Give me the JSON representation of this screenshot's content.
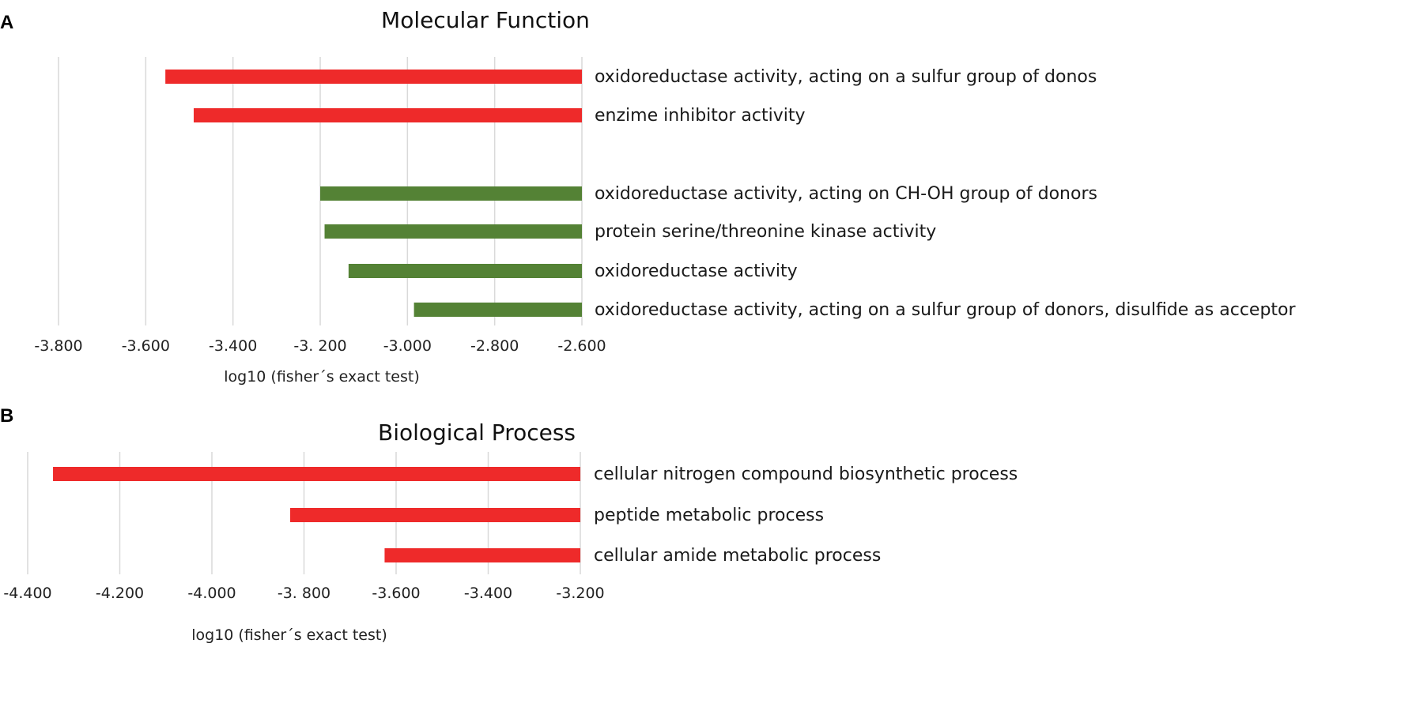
{
  "chart_data": [
    {
      "panel_label": "A",
      "type": "bar",
      "orientation": "horizontal",
      "title": "Molecular Function",
      "xlabel": "log10 (fisher´s exact test)",
      "xlim": [
        -3.8,
        -2.6
      ],
      "xticks": [
        -3.8,
        -3.6,
        -3.4,
        -3.2,
        -3.0,
        -2.8,
        -2.6
      ],
      "xtick_labels": [
        "-3.800",
        "-3.600",
        "-3.400",
        "-3. 200",
        "-3.000",
        "-2.800",
        "-2.600"
      ],
      "grid": true,
      "colors": {
        "up": "#ee2a2a",
        "down": "#548235"
      },
      "categories": [
        "oxidoreductase activity, acting on a sulfur group of donos",
        "enzime inhibitor activity",
        "",
        "oxidoreductase activity, acting on CH-OH group of donors",
        "protein serine/threonine kinase activity",
        "oxidoreductase activity",
        "oxidoreductase activity, acting on a sulfur group of donors, disulfide as acceptor"
      ],
      "values": [
        -3.555,
        -3.49,
        null,
        -3.2,
        -3.19,
        -3.135,
        -2.985
      ],
      "bar_colors": [
        "up",
        "up",
        null,
        "down",
        "down",
        "down",
        "down"
      ]
    },
    {
      "panel_label": "B",
      "type": "bar",
      "orientation": "horizontal",
      "title": "Biological Process",
      "xlabel": "log10 (fisher´s exact test)",
      "xlim": [
        -4.4,
        -3.2
      ],
      "xticks": [
        -4.4,
        -4.2,
        -4.0,
        -3.8,
        -3.6,
        -3.4,
        -3.2
      ],
      "xtick_labels": [
        "-4.400",
        "-4.200",
        "-4.000",
        "-3. 800",
        "-3.600",
        "-3.400",
        "-3.200"
      ],
      "grid": true,
      "colors": {
        "up": "#ee2a2a"
      },
      "categories": [
        "cellular nitrogen compound biosynthetic process",
        "peptide metabolic process",
        "cellular amide metabolic process"
      ],
      "values": [
        -4.345,
        -3.83,
        -3.625
      ],
      "bar_colors": [
        "up",
        "up",
        "up"
      ]
    }
  ]
}
